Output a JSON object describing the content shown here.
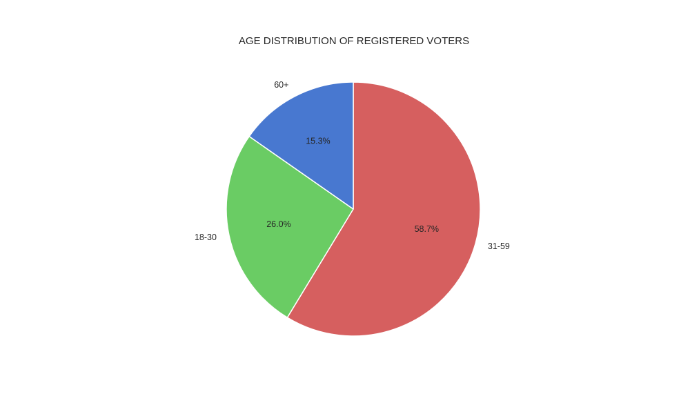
{
  "chart_data": {
    "type": "pie",
    "title": "AGE DISTRIBUTION OF REGISTERED VOTERS",
    "categories": [
      "31-59",
      "18-30",
      "60+"
    ],
    "values": [
      58.7,
      26.0,
      15.3
    ],
    "percent_labels": [
      "58.7%",
      "26.0%",
      "15.3%"
    ],
    "colors": [
      "#d65f5f",
      "#6acc64",
      "#4878d0"
    ],
    "start_angle_deg": 90,
    "direction": "clockwise",
    "legend": "none"
  }
}
